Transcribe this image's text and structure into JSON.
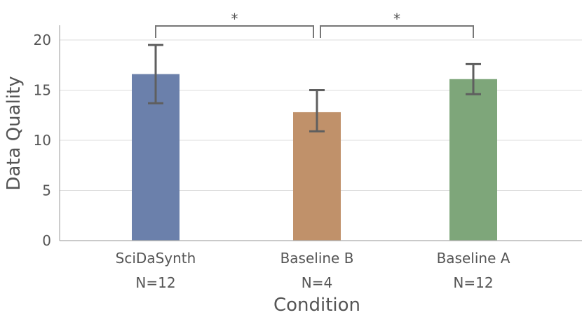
{
  "chart_data": {
    "type": "bar",
    "title": "",
    "xlabel": "Condition",
    "ylabel": "Data Quality",
    "ylim": [
      0,
      21.5
    ],
    "yticks": [
      0,
      5,
      10,
      15,
      20
    ],
    "grid": "y",
    "categories": [
      "SciDaSynth",
      "Baseline B",
      "Baseline A"
    ],
    "sample_sizes": [
      "N=12",
      "N=4",
      "N=12"
    ],
    "values": [
      16.6,
      12.8,
      16.1
    ],
    "error_low": [
      13.7,
      10.9,
      14.6
    ],
    "error_high": [
      19.5,
      15.0,
      17.6
    ],
    "colors": [
      "#6b80ab",
      "#c0916a",
      "#7ea67a"
    ],
    "significance": [
      {
        "from": 0,
        "to": 1,
        "label": "*"
      },
      {
        "from": 1,
        "to": 2,
        "label": "*"
      }
    ]
  }
}
